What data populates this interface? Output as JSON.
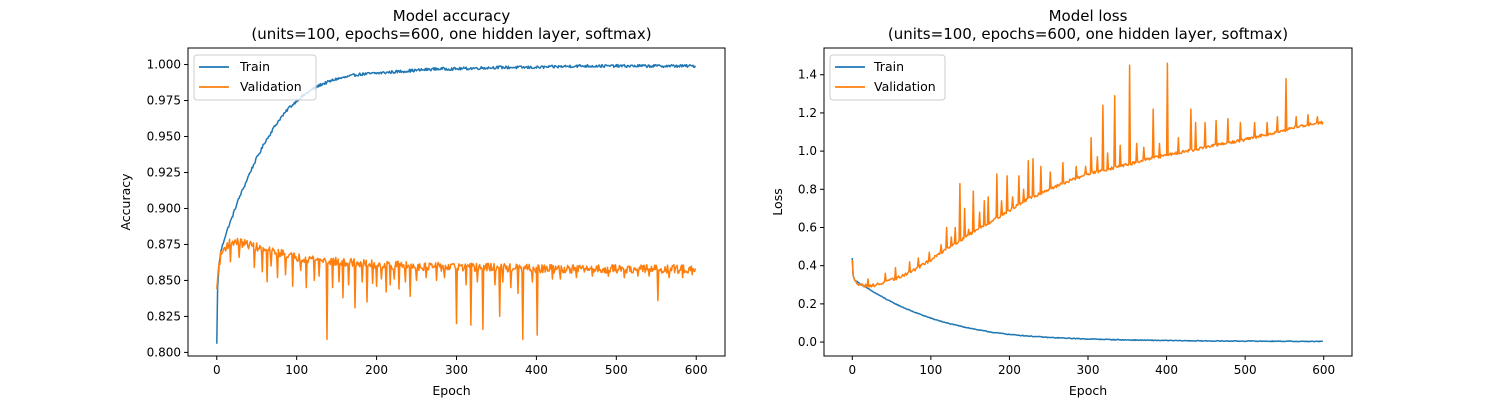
{
  "chart_data": [
    {
      "type": "line",
      "title": "Model accuracy",
      "subtitle": "(units=100, epochs=600, one hidden layer, softmax)",
      "xlabel": "Epoch",
      "ylabel": "Accuracy",
      "xlim": [
        -36,
        636
      ],
      "ylim": [
        0.7975,
        1.0115
      ],
      "xticks": [
        0,
        100,
        200,
        300,
        400,
        500,
        600
      ],
      "xtick_labels": [
        "0",
        "100",
        "200",
        "300",
        "400",
        "500",
        "600"
      ],
      "yticks": [
        0.8,
        0.825,
        0.85,
        0.875,
        0.9,
        0.925,
        0.95,
        0.975,
        1.0
      ],
      "ytick_labels": [
        "0.800",
        "0.825",
        "0.850",
        "0.875",
        "0.900",
        "0.925",
        "0.950",
        "0.975",
        "1.000"
      ],
      "grid": false,
      "legend_position": "top-left",
      "series": [
        {
          "name": "Train",
          "color": "#1f77b4",
          "points": [
            [
              0,
              0.806
            ],
            [
              1,
              0.845
            ],
            [
              3,
              0.862
            ],
            [
              5,
              0.87
            ],
            [
              10,
              0.88
            ],
            [
              15,
              0.888
            ],
            [
              20,
              0.895
            ],
            [
              25,
              0.903
            ],
            [
              30,
              0.91
            ],
            [
              35,
              0.916
            ],
            [
              40,
              0.923
            ],
            [
              45,
              0.929
            ],
            [
              50,
              0.935
            ],
            [
              55,
              0.94
            ],
            [
              60,
              0.946
            ],
            [
              65,
              0.95
            ],
            [
              70,
              0.955
            ],
            [
              75,
              0.959
            ],
            [
              80,
              0.963
            ],
            [
              85,
              0.966
            ],
            [
              90,
              0.97
            ],
            [
              95,
              0.972
            ],
            [
              100,
              0.975
            ],
            [
              110,
              0.979
            ],
            [
              120,
              0.983
            ],
            [
              130,
              0.986
            ],
            [
              140,
              0.988
            ],
            [
              150,
              0.99
            ],
            [
              160,
              0.991
            ],
            [
              175,
              0.993
            ],
            [
              200,
              0.994
            ],
            [
              225,
              0.995
            ],
            [
              250,
              0.996
            ],
            [
              275,
              0.997
            ],
            [
              300,
              0.997
            ],
            [
              350,
              0.998
            ],
            [
              400,
              0.998
            ],
            [
              450,
              0.999
            ],
            [
              500,
              0.999
            ],
            [
              550,
              0.999
            ],
            [
              599,
              0.999
            ]
          ],
          "noise": 0.001
        },
        {
          "name": "Validation",
          "color": "#ff7f0e",
          "points": [
            [
              0,
              0.844
            ],
            [
              2,
              0.858
            ],
            [
              5,
              0.867
            ],
            [
              8,
              0.871
            ],
            [
              12,
              0.874
            ],
            [
              16,
              0.876
            ],
            [
              20,
              0.877
            ],
            [
              30,
              0.876
            ],
            [
              40,
              0.875
            ],
            [
              50,
              0.873
            ],
            [
              60,
              0.871
            ],
            [
              80,
              0.869
            ],
            [
              100,
              0.866
            ],
            [
              120,
              0.865
            ],
            [
              150,
              0.863
            ],
            [
              200,
              0.861
            ],
            [
              250,
              0.86
            ],
            [
              300,
              0.859
            ],
            [
              350,
              0.859
            ],
            [
              400,
              0.858
            ],
            [
              450,
              0.858
            ],
            [
              500,
              0.858
            ],
            [
              550,
              0.858
            ],
            [
              599,
              0.858
            ]
          ],
          "noise": 0.003,
          "dips": [
            [
              17,
              0.863
            ],
            [
              28,
              0.866
            ],
            [
              47,
              0.859
            ],
            [
              57,
              0.856
            ],
            [
              63,
              0.849
            ],
            [
              68,
              0.86
            ],
            [
              76,
              0.852
            ],
            [
              86,
              0.854
            ],
            [
              95,
              0.846
            ],
            [
              105,
              0.857
            ],
            [
              112,
              0.845
            ],
            [
              122,
              0.85
            ],
            [
              128,
              0.853
            ],
            [
              138,
              0.809
            ],
            [
              145,
              0.845
            ],
            [
              153,
              0.849
            ],
            [
              158,
              0.838
            ],
            [
              165,
              0.847
            ],
            [
              173,
              0.831
            ],
            [
              182,
              0.849
            ],
            [
              188,
              0.835
            ],
            [
              195,
              0.848
            ],
            [
              200,
              0.846
            ],
            [
              206,
              0.851
            ],
            [
              212,
              0.842
            ],
            [
              217,
              0.847
            ],
            [
              222,
              0.851
            ],
            [
              228,
              0.844
            ],
            [
              236,
              0.849
            ],
            [
              242,
              0.839
            ],
            [
              250,
              0.85
            ],
            [
              262,
              0.852
            ],
            [
              275,
              0.85
            ],
            [
              285,
              0.852
            ],
            [
              300,
              0.82
            ],
            [
              312,
              0.847
            ],
            [
              318,
              0.819
            ],
            [
              326,
              0.849
            ],
            [
              333,
              0.816
            ],
            [
              348,
              0.847
            ],
            [
              354,
              0.825
            ],
            [
              358,
              0.849
            ],
            [
              368,
              0.845
            ],
            [
              377,
              0.841
            ],
            [
              383,
              0.809
            ],
            [
              395,
              0.849
            ],
            [
              401,
              0.812
            ],
            [
              420,
              0.851
            ],
            [
              430,
              0.851
            ],
            [
              450,
              0.852
            ],
            [
              470,
              0.853
            ],
            [
              490,
              0.853
            ],
            [
              510,
              0.852
            ],
            [
              527,
              0.853
            ],
            [
              541,
              0.853
            ],
            [
              552,
              0.836
            ],
            [
              566,
              0.852
            ],
            [
              583,
              0.852
            ],
            [
              595,
              0.854
            ]
          ]
        }
      ]
    },
    {
      "type": "line",
      "title": "Model loss",
      "subtitle": "(units=100, epochs=600, one hidden layer, softmax)",
      "xlabel": "Epoch",
      "ylabel": "Loss",
      "xlim": [
        -36,
        636
      ],
      "ylim": [
        -0.073,
        1.54
      ],
      "xticks": [
        0,
        100,
        200,
        300,
        400,
        500,
        600
      ],
      "xtick_labels": [
        "0",
        "100",
        "200",
        "300",
        "400",
        "500",
        "600"
      ],
      "yticks": [
        0.0,
        0.2,
        0.4,
        0.6,
        0.8,
        1.0,
        1.2,
        1.4
      ],
      "ytick_labels": [
        "0.0",
        "0.2",
        "0.4",
        "0.6",
        "0.8",
        "1.0",
        "1.2",
        "1.4"
      ],
      "grid": false,
      "legend_position": "top-left",
      "series": [
        {
          "name": "Train",
          "color": "#1f77b4",
          "points": [
            [
              0,
              0.44
            ],
            [
              1,
              0.35
            ],
            [
              3,
              0.325
            ],
            [
              10,
              0.305
            ],
            [
              20,
              0.28
            ],
            [
              30,
              0.255
            ],
            [
              40,
              0.232
            ],
            [
              50,
              0.21
            ],
            [
              60,
              0.19
            ],
            [
              70,
              0.172
            ],
            [
              80,
              0.155
            ],
            [
              90,
              0.14
            ],
            [
              100,
              0.125
            ],
            [
              120,
              0.1
            ],
            [
              140,
              0.081
            ],
            [
              160,
              0.064
            ],
            [
              180,
              0.05
            ],
            [
              200,
              0.04
            ],
            [
              220,
              0.033
            ],
            [
              250,
              0.024
            ],
            [
              300,
              0.016
            ],
            [
              350,
              0.011
            ],
            [
              400,
              0.008
            ],
            [
              450,
              0.006
            ],
            [
              500,
              0.005
            ],
            [
              550,
              0.004
            ],
            [
              599,
              0.003
            ]
          ],
          "noise": 0.002
        },
        {
          "name": "Validation",
          "color": "#ff7f0e",
          "points": [
            [
              0,
              0.43
            ],
            [
              1,
              0.35
            ],
            [
              3,
              0.32
            ],
            [
              8,
              0.305
            ],
            [
              15,
              0.295
            ],
            [
              25,
              0.295
            ],
            [
              40,
              0.31
            ],
            [
              60,
              0.34
            ],
            [
              80,
              0.38
            ],
            [
              100,
              0.43
            ],
            [
              120,
              0.49
            ],
            [
              140,
              0.54
            ],
            [
              160,
              0.59
            ],
            [
              180,
              0.64
            ],
            [
              200,
              0.69
            ],
            [
              220,
              0.74
            ],
            [
              250,
              0.8
            ],
            [
              280,
              0.85
            ],
            [
              300,
              0.88
            ],
            [
              330,
              0.91
            ],
            [
              360,
              0.94
            ],
            [
              400,
              0.98
            ],
            [
              450,
              1.02
            ],
            [
              500,
              1.06
            ],
            [
              550,
              1.11
            ],
            [
              580,
              1.14
            ],
            [
              599,
              1.15
            ]
          ],
          "noise": 0.008,
          "spikes": [
            [
              20,
              0.33
            ],
            [
              42,
              0.36
            ],
            [
              55,
              0.39
            ],
            [
              73,
              0.42
            ],
            [
              84,
              0.44
            ],
            [
              98,
              0.47
            ],
            [
              113,
              0.51
            ],
            [
              120,
              0.6
            ],
            [
              126,
              0.55
            ],
            [
              131,
              0.6
            ],
            [
              137,
              0.83
            ],
            [
              143,
              0.7
            ],
            [
              148,
              0.59
            ],
            [
              154,
              0.79
            ],
            [
              162,
              0.68
            ],
            [
              168,
              0.74
            ],
            [
              173,
              0.76
            ],
            [
              184,
              0.88
            ],
            [
              190,
              0.74
            ],
            [
              197,
              0.87
            ],
            [
              204,
              0.76
            ],
            [
              212,
              0.87
            ],
            [
              218,
              0.8
            ],
            [
              224,
              0.95
            ],
            [
              230,
              0.96
            ],
            [
              240,
              0.92
            ],
            [
              252,
              0.89
            ],
            [
              268,
              0.94
            ],
            [
              285,
              0.92
            ],
            [
              297,
              0.92
            ],
            [
              304,
              1.07
            ],
            [
              312,
              0.97
            ],
            [
              319,
              1.24
            ],
            [
              325,
              0.99
            ],
            [
              334,
              1.29
            ],
            [
              341,
              1.03
            ],
            [
              353,
              1.45
            ],
            [
              362,
              1.04
            ],
            [
              371,
              1.02
            ],
            [
              383,
              1.22
            ],
            [
              391,
              1.04
            ],
            [
              401,
              1.46
            ],
            [
              415,
              1.07
            ],
            [
              431,
              1.22
            ],
            [
              437,
              1.15
            ],
            [
              449,
              1.15
            ],
            [
              463,
              1.16
            ],
            [
              478,
              1.17
            ],
            [
              494,
              1.15
            ],
            [
              512,
              1.15
            ],
            [
              528,
              1.15
            ],
            [
              541,
              1.18
            ],
            [
              552,
              1.38
            ],
            [
              565,
              1.18
            ],
            [
              580,
              1.19
            ],
            [
              592,
              1.18
            ]
          ]
        }
      ]
    }
  ]
}
